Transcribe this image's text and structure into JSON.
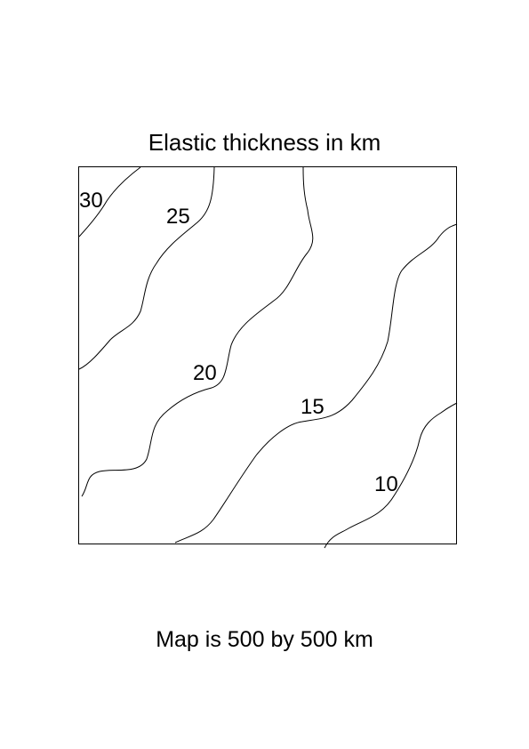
{
  "title": "Elastic thickness in km",
  "caption": "Map is 500 by 500 km",
  "map": {
    "width_km": 500,
    "height_km": 500,
    "unit": "km",
    "contours": [
      {
        "name": "contour-30",
        "label": "30"
      },
      {
        "name": "contour-25",
        "label": "25"
      },
      {
        "name": "contour-20",
        "label": "20"
      },
      {
        "name": "contour-15",
        "label": "15"
      },
      {
        "name": "contour-10",
        "label": "10"
      }
    ]
  },
  "colors": {
    "line": "#000000",
    "background": "#ffffff"
  }
}
